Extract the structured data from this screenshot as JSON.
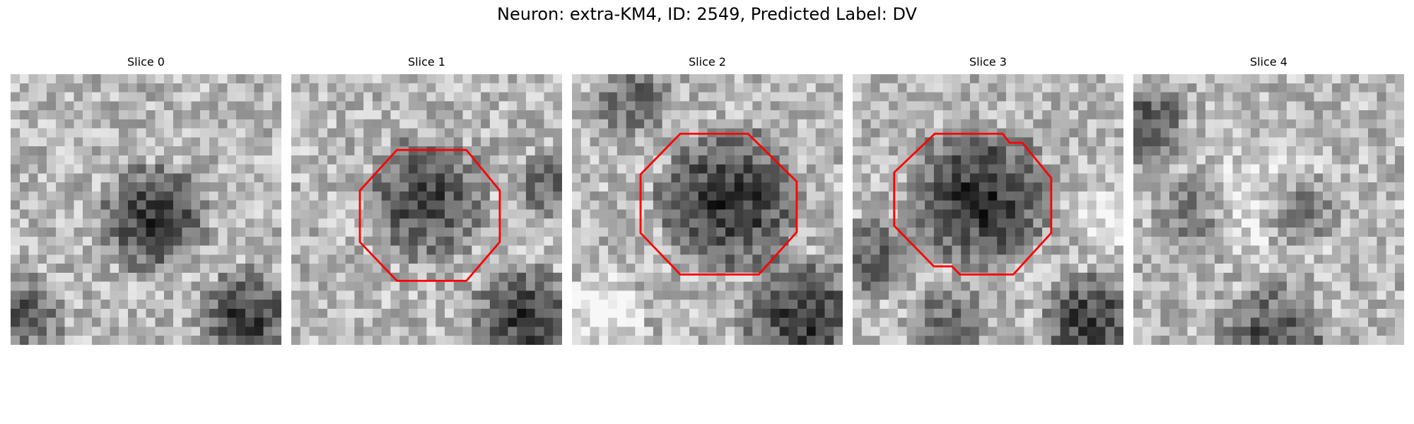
{
  "figure": {
    "title": "Neuron: extra-KM4, ID: 2549, Predicted Label: DV"
  },
  "slices": [
    {
      "title": "Slice 0",
      "has_contour": false
    },
    {
      "title": "Slice 1",
      "has_contour": true
    },
    {
      "title": "Slice 2",
      "has_contour": true
    },
    {
      "title": "Slice 3",
      "has_contour": true
    },
    {
      "title": "Slice 4",
      "has_contour": false
    }
  ],
  "colors": {
    "contour": "#ff0000",
    "colormap": "grayscale"
  }
}
